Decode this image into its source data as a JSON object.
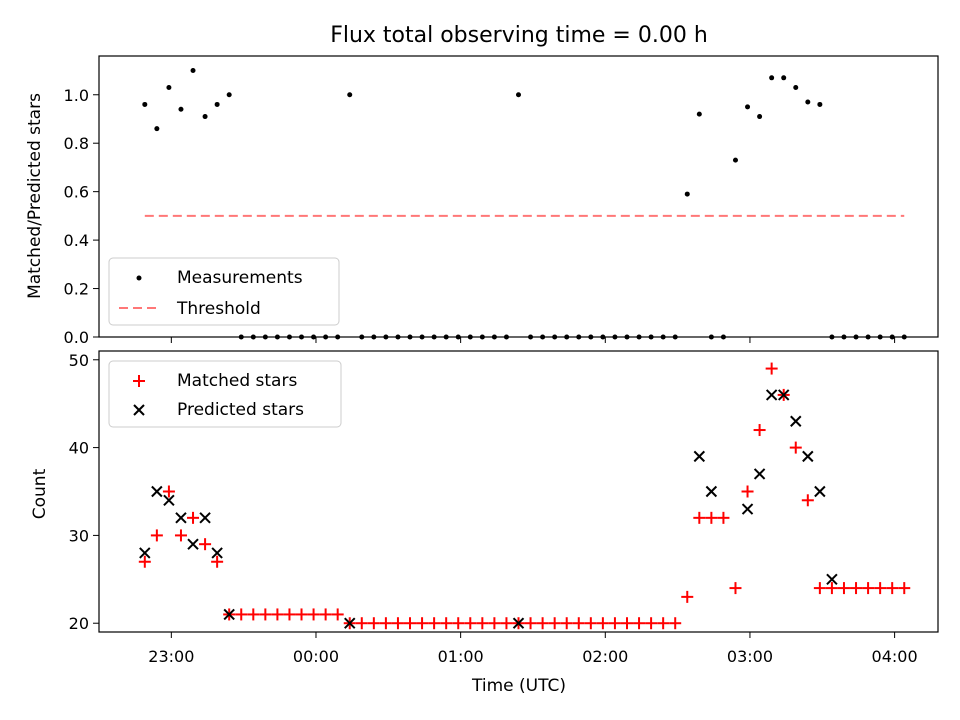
{
  "figure": {
    "title": "Flux total observing time = 0.00 h"
  },
  "chart_data": [
    {
      "type": "scatter",
      "ylabel": "Matched/Predicted stars",
      "xlabel": "",
      "xlim": [
        "22:30",
        "04:18"
      ],
      "ylim": [
        0,
        1.16
      ],
      "yticks": [
        0.0,
        0.2,
        0.4,
        0.6,
        0.8,
        1.0
      ],
      "ytick_labels": [
        "0.0",
        "0.2",
        "0.4",
        "0.6",
        "0.8",
        "1.0"
      ],
      "legend_position": "lower-left",
      "grid": false,
      "series": [
        {
          "name": "Measurements",
          "marker": "dot",
          "color": "#000000",
          "x": [
            "22:49",
            "22:54",
            "22:59",
            "23:04",
            "23:09",
            "23:14",
            "23:19",
            "23:24",
            "23:29",
            "23:34",
            "23:39",
            "23:44",
            "23:49",
            "23:54",
            "23:59",
            "00:04",
            "00:09",
            "00:14",
            "00:19",
            "00:24",
            "00:29",
            "00:34",
            "00:39",
            "00:44",
            "00:49",
            "00:54",
            "00:59",
            "01:04",
            "01:09",
            "01:14",
            "01:19",
            "01:24",
            "01:29",
            "01:34",
            "01:39",
            "01:44",
            "01:49",
            "01:54",
            "01:59",
            "02:04",
            "02:09",
            "02:14",
            "02:19",
            "02:24",
            "02:29",
            "02:34",
            "02:39",
            "02:44",
            "02:49",
            "02:54",
            "02:59",
            "03:04",
            "03:09",
            "03:14",
            "03:19",
            "03:24",
            "03:29",
            "03:34",
            "03:39",
            "03:44",
            "03:49",
            "03:54",
            "03:59",
            "04:04"
          ],
          "y": [
            0.96,
            0.86,
            1.03,
            0.94,
            1.1,
            0.91,
            0.96,
            1.0,
            0,
            0,
            0,
            0,
            0,
            0,
            0,
            0,
            0,
            1.0,
            0,
            0,
            0,
            0,
            0,
            0,
            0,
            0,
            0,
            0,
            0,
            0,
            0,
            1.0,
            0,
            0,
            0,
            0,
            0,
            0,
            0,
            0,
            0,
            0,
            0,
            0,
            0,
            0.59,
            0.92,
            0,
            0,
            0.73,
            0.95,
            0.91,
            1.07,
            1.07,
            1.03,
            0.97,
            0.96,
            0,
            0,
            0,
            0,
            0,
            0,
            0
          ]
        },
        {
          "name": "Threshold",
          "style": "dashed",
          "color": "#ff7777",
          "x": [
            "22:49",
            "04:04"
          ],
          "y": [
            0.5,
            0.5
          ]
        }
      ]
    },
    {
      "type": "scatter",
      "ylabel": "Count",
      "xlabel": "Time (UTC)",
      "xlim": [
        "22:30",
        "04:18"
      ],
      "ylim": [
        19,
        51
      ],
      "yticks": [
        20,
        30,
        40,
        50
      ],
      "ytick_labels": [
        "20",
        "30",
        "40",
        "50"
      ],
      "xticks": [
        "23:00",
        "00:00",
        "01:00",
        "02:00",
        "03:00",
        "04:00"
      ],
      "legend_position": "upper-left",
      "grid": false,
      "series": [
        {
          "name": "Matched stars",
          "marker": "plus",
          "color": "#ff0000",
          "x": [
            "22:49",
            "22:54",
            "22:59",
            "23:04",
            "23:09",
            "23:14",
            "23:19",
            "23:24",
            "23:29",
            "23:34",
            "23:39",
            "23:44",
            "23:49",
            "23:54",
            "23:59",
            "00:04",
            "00:09",
            "00:14",
            "00:19",
            "00:24",
            "00:29",
            "00:34",
            "00:39",
            "00:44",
            "00:49",
            "00:54",
            "00:59",
            "01:04",
            "01:09",
            "01:14",
            "01:19",
            "01:24",
            "01:29",
            "01:34",
            "01:39",
            "01:44",
            "01:49",
            "01:54",
            "01:59",
            "02:04",
            "02:09",
            "02:14",
            "02:19",
            "02:24",
            "02:29",
            "02:34",
            "02:39",
            "02:44",
            "02:49",
            "02:54",
            "02:59",
            "03:04",
            "03:09",
            "03:14",
            "03:19",
            "03:24",
            "03:29",
            "03:34",
            "03:39",
            "03:44",
            "03:49",
            "03:54",
            "03:59",
            "04:04"
          ],
          "y": [
            27,
            30,
            35,
            30,
            32,
            29,
            27,
            21,
            21,
            21,
            21,
            21,
            21,
            21,
            21,
            21,
            21,
            20,
            20,
            20,
            20,
            20,
            20,
            20,
            20,
            20,
            20,
            20,
            20,
            20,
            20,
            20,
            20,
            20,
            20,
            20,
            20,
            20,
            20,
            20,
            20,
            20,
            20,
            20,
            20,
            23,
            32,
            32,
            32,
            24,
            35,
            42,
            49,
            46,
            40,
            34,
            24,
            24,
            24,
            24,
            24,
            24,
            24,
            24
          ]
        },
        {
          "name": "Predicted stars",
          "marker": "x",
          "color": "#000000",
          "x": [
            "22:49",
            "22:54",
            "22:59",
            "23:04",
            "23:09",
            "23:14",
            "23:19",
            "23:24",
            "00:14",
            "01:24",
            "02:39",
            "02:44",
            "02:59",
            "03:04",
            "03:09",
            "03:14",
            "03:19",
            "03:24",
            "03:29",
            "03:34"
          ],
          "y": [
            28,
            35,
            34,
            32,
            29,
            32,
            28,
            21,
            20,
            20,
            39,
            35,
            33,
            37,
            46,
            46,
            43,
            39,
            35,
            25
          ]
        }
      ]
    }
  ]
}
